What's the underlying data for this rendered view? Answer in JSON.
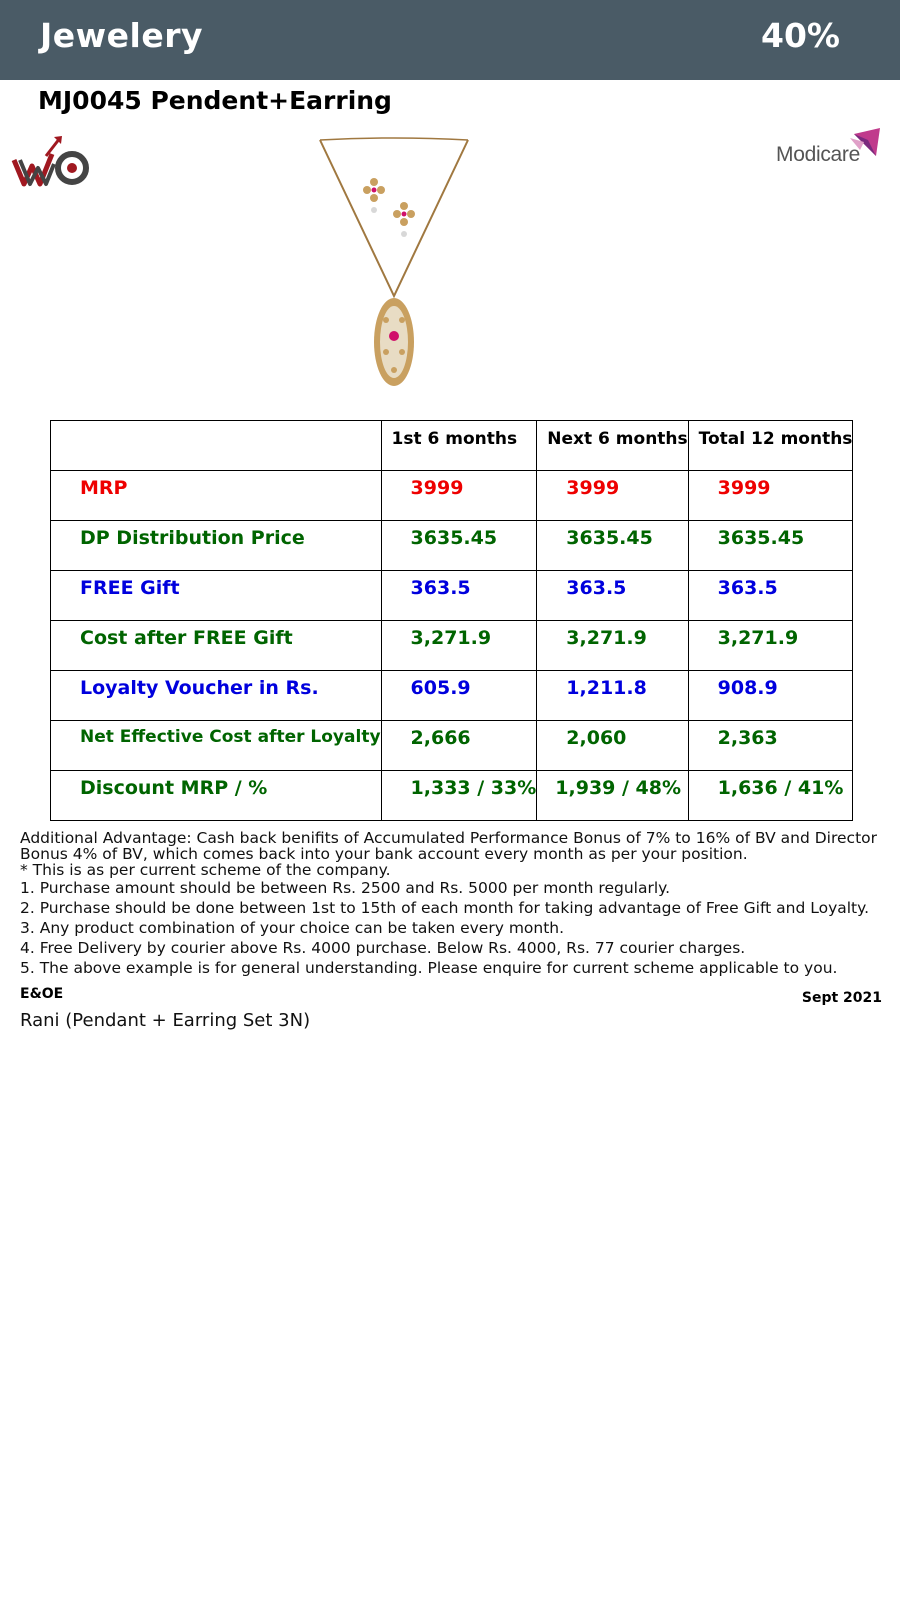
{
  "header": {
    "title": "Jewelery",
    "percent": "40%"
  },
  "product": {
    "title": "MJ0045 Pendent+Earring",
    "image_icon": "pendant-earring-set-image"
  },
  "logos": {
    "left": "wc-logo-icon",
    "right_text": "Modicare",
    "right_icon": "modicare-logo-icon"
  },
  "table": {
    "headers": [
      "",
      "1st 6 months",
      "Next 6 months",
      "Total 12 months"
    ],
    "rows": [
      {
        "label": "MRP",
        "values": [
          "3999",
          "3999",
          "3999"
        ],
        "color": "#ee0000"
      },
      {
        "label": "DP Distribution Price",
        "values": [
          "3635.45",
          "3635.45",
          "3635.45"
        ],
        "color": "#006400"
      },
      {
        "label": "FREE Gift",
        "values": [
          "363.5",
          "363.5",
          "363.5"
        ],
        "color": "#0000dd"
      },
      {
        "label": "Cost after FREE Gift",
        "values": [
          "3,271.9",
          "3,271.9",
          "3,271.9"
        ],
        "color": "#006400"
      },
      {
        "label": "Loyalty Voucher in Rs.",
        "values": [
          "605.9",
          "1,211.8",
          "908.9"
        ],
        "color": "#0000dd"
      },
      {
        "label": "Net Effective Cost after Loyalty",
        "values": [
          "2,666",
          "2,060",
          "2,363"
        ],
        "color": "#006400"
      },
      {
        "label": "Discount MRP / %",
        "values": [
          "1,333 / 33%",
          "1,939 / 48%",
          "1,636 / 41%"
        ],
        "color": "#006400"
      }
    ]
  },
  "notes": {
    "advantage": "Additional Advantage: Cash back benifits of Accumulated Performance Bonus of 7% to 16% of BV and Director Bonus 4% of BV, which comes back into your bank account every month as per your position.",
    "scheme": "* This is as per current scheme of the company.",
    "items": [
      "1. Purchase amount should be between Rs. 2500 and Rs. 5000 per month regularly.",
      "2. Purchase should be done between 1st to 15th of each month for taking advantage of Free Gift and Loyalty.",
      "3. Any product combination of your choice can be taken every month.",
      "4. Free Delivery by courier above Rs. 4000 purchase. Below Rs. 4000, Rs. 77 courier charges.",
      "5. The above example is for general understanding. Please enquire for current scheme applicable to you."
    ]
  },
  "footer": {
    "eoe": "E&OE",
    "date": "Sept 2021",
    "set_name": "Rani (Pendant + Earring Set 3N)"
  }
}
